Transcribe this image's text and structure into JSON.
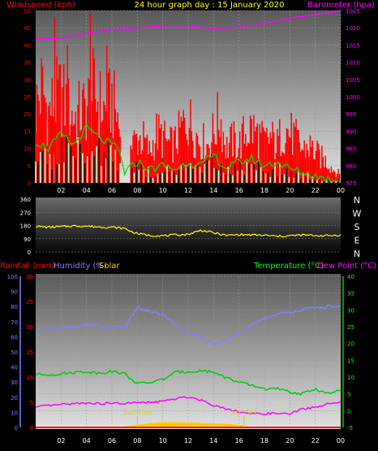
{
  "colors": {
    "wind": "#ff0000",
    "gust": "#ff0000",
    "wind_avg": "#00dd00",
    "wind_light": "#ccffcc",
    "baro": "#ff00ff",
    "dir": "#ffff00",
    "rain": "#ff0000",
    "hum": "#8080ff",
    "solar": "#ffcc00",
    "temp": "#00cc00",
    "dew": "#ff00ff",
    "sun_marker": "#cccc33"
  },
  "header": {
    "left_label": "Windspeed (kph)",
    "title": "24 hour graph day : 15 January 2020",
    "right_label": "Barometer (hpa)"
  },
  "bottom_header": {
    "rain_label": "Rainfall (mm)",
    "hum_label": "Humidity (%)",
    "solar_label": "Solar",
    "temp_label": "Temperature (°C)",
    "dew_label": "Dew Point (°C)"
  },
  "chart_data": [
    {
      "type": "area",
      "panel": "wind",
      "x_ticks": [
        "02",
        "04",
        "06",
        "08",
        "10",
        "12",
        "14",
        "16",
        "18",
        "20",
        "22",
        "00"
      ],
      "y_left_ticks": [
        "0",
        "5",
        "10",
        "15",
        "20",
        "25",
        "30",
        "35",
        "40",
        "45",
        "50"
      ],
      "y_right_ticks": [
        "975",
        "980",
        "985",
        "990",
        "995",
        "1000",
        "1005",
        "1010",
        "1015",
        "1020",
        "1025"
      ],
      "ylim_left": [
        0,
        50
      ],
      "ylim_right": [
        975,
        1025
      ],
      "series": [
        {
          "name": "Windspeed (kph)",
          "hours": [
            0,
            0.5,
            1,
            1.5,
            2,
            2.5,
            3,
            3.5,
            4,
            4.5,
            5,
            5.5,
            6,
            6.5,
            7,
            7.5,
            8,
            8.5,
            9,
            9.5,
            10,
            10.5,
            11,
            11.5,
            12,
            12.5,
            13,
            13.5,
            14,
            14.5,
            15,
            15.5,
            16,
            16.5,
            17,
            17.5,
            18,
            18.5,
            19,
            19.5,
            20,
            20.5,
            21,
            21.5,
            22,
            22.5,
            23,
            23.5,
            24
          ],
          "values": [
            30,
            38,
            28,
            33,
            35,
            30,
            26,
            28,
            30,
            36,
            32,
            28,
            33,
            25,
            5,
            15,
            18,
            17,
            12,
            20,
            18,
            15,
            16,
            22,
            26,
            20,
            17,
            15,
            20,
            27,
            14,
            17,
            15,
            20,
            22,
            19,
            16,
            18,
            15,
            22,
            20,
            17,
            13,
            15,
            12,
            10,
            8,
            5,
            3
          ]
        },
        {
          "name": "Gust (kph)",
          "hours": [
            1.5,
            2.5,
            4.3,
            5.6
          ],
          "values": [
            48,
            40,
            49,
            40
          ]
        },
        {
          "name": "Average (kph)",
          "hours": [
            0,
            1,
            2,
            3,
            4,
            5,
            6,
            6.5,
            7,
            8,
            9,
            10,
            11,
            12,
            13,
            14,
            15,
            16,
            17,
            18,
            19,
            20,
            21,
            22,
            23,
            24
          ],
          "values": [
            12,
            10,
            14,
            11,
            16,
            13,
            11,
            10,
            3,
            6,
            4,
            5,
            4,
            6,
            5,
            8,
            4,
            6,
            7,
            5,
            6,
            4,
            3,
            2,
            1,
            1
          ]
        },
        {
          "name": "Barometer (hpa)",
          "hours": [
            0,
            2,
            4,
            6,
            8,
            10,
            12,
            14,
            16,
            18,
            20,
            22,
            24
          ],
          "values": [
            1016.8,
            1017,
            1018.4,
            1019.5,
            1020,
            1020.6,
            1020.6,
            1019.8,
            1020.2,
            1021.2,
            1022.8,
            1023.8,
            1025
          ]
        }
      ]
    },
    {
      "type": "line",
      "panel": "wind direction",
      "y_ticks": [
        "0",
        "90",
        "180",
        "270",
        "360"
      ],
      "compass": [
        "N",
        "W",
        "S",
        "E",
        "N"
      ],
      "ylim": [
        0,
        360
      ],
      "series": [
        {
          "name": "Direction",
          "hours": [
            0,
            1,
            2,
            3,
            4,
            5,
            6,
            7,
            7.5,
            8,
            9,
            10,
            11,
            12,
            13,
            14,
            15,
            16,
            17,
            18,
            19,
            20,
            21,
            22,
            23,
            24
          ],
          "values": [
            175,
            168,
            172,
            177,
            176,
            170,
            168,
            160,
            140,
            125,
            112,
            110,
            115,
            120,
            148,
            130,
            112,
            118,
            115,
            113,
            106,
            110,
            115,
            112,
            110,
            115
          ]
        }
      ]
    },
    {
      "type": "line",
      "panel": "temperature / humidity",
      "y_hum_ticks": [
        "0",
        "10",
        "20",
        "30",
        "40",
        "50",
        "60",
        "70",
        "80",
        "90",
        "100"
      ],
      "y_rain_ticks": [
        "0",
        "5",
        "10",
        "15",
        "20",
        "25",
        "30"
      ],
      "y_temp_ticks": [
        "-5",
        "0",
        "5",
        "10",
        "15",
        "20",
        "25",
        "30",
        "35",
        "40"
      ],
      "ylim_hum": [
        0,
        100
      ],
      "ylim_temp": [
        -5,
        40
      ],
      "ylim_rain": [
        0,
        30
      ],
      "annotations": [
        "SunRise",
        "SunSet"
      ],
      "sun_events": [
        8,
        16.4
      ],
      "series": [
        {
          "name": "Humidity (%)",
          "hours": [
            0,
            1,
            2,
            3,
            4,
            5,
            6,
            7,
            7.5,
            8,
            8.5,
            9,
            10,
            11,
            12,
            13,
            14,
            15,
            16,
            17,
            18,
            19,
            20,
            21,
            22,
            23,
            24
          ],
          "values": [
            62,
            65,
            65,
            67,
            68,
            67,
            66,
            66,
            73,
            80,
            78,
            76,
            75,
            68,
            62,
            60,
            55,
            58,
            62,
            68,
            72,
            75,
            76,
            78,
            79,
            80,
            80
          ]
        },
        {
          "name": "Temperature (°C)",
          "hours": [
            0,
            1,
            2,
            3,
            4,
            5,
            6,
            7,
            8,
            9,
            10,
            11,
            12,
            13,
            14,
            15,
            16,
            17,
            18,
            19,
            20,
            21,
            22,
            23,
            24
          ],
          "values": [
            10.8,
            10.7,
            11,
            11.4,
            11.6,
            11.2,
            11.7,
            11,
            8,
            8.4,
            9.3,
            11.4,
            11.6,
            11.9,
            11.5,
            9.8,
            8.4,
            7.5,
            6.5,
            6.5,
            5.5,
            5,
            6.5,
            5,
            6
          ]
        },
        {
          "name": "Dew Point (°C)",
          "hours": [
            0,
            1,
            2,
            3,
            4,
            5,
            6,
            7,
            8,
            9,
            10,
            11,
            12,
            13,
            14,
            15,
            16,
            17,
            18,
            19,
            20,
            21,
            22,
            23,
            24
          ],
          "values": [
            1,
            1.5,
            1.8,
            2.1,
            2.3,
            2.1,
            2.2,
            2.1,
            2.4,
            2.4,
            2.8,
            3.5,
            4.1,
            3.2,
            1.6,
            0.6,
            -0.3,
            -1,
            -0.9,
            -0.8,
            -1,
            0.5,
            1,
            2,
            2.5
          ]
        },
        {
          "name": "Solar",
          "hours": [
            0,
            6.5,
            7,
            8,
            9,
            10,
            11,
            12,
            13,
            14,
            15,
            16,
            16.5,
            17,
            24
          ],
          "values": [
            0,
            0,
            0.3,
            0.8,
            1.3,
            1.6,
            1.6,
            1.5,
            1.4,
            1.2,
            1.1,
            0.8,
            0.5,
            0,
            0
          ]
        },
        {
          "name": "Rainfall (mm)",
          "hours": [
            0,
            24
          ],
          "values": [
            0,
            0
          ]
        }
      ]
    }
  ]
}
